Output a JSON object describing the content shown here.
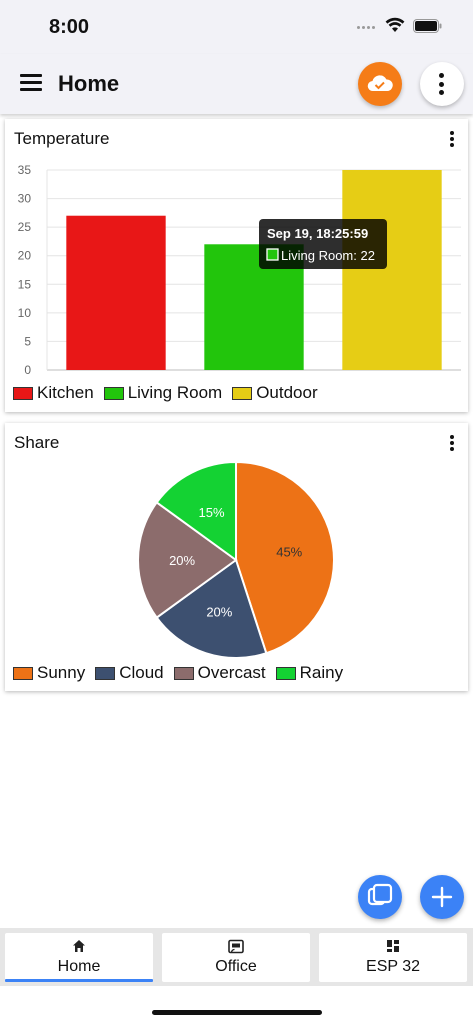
{
  "status": {
    "time": "8:00"
  },
  "app": {
    "title": "Home"
  },
  "temperature_card": {
    "title": "Temperature",
    "tooltip": {
      "time": "Sep 19, 18:25:59",
      "label": "Living Room: 22"
    },
    "legend": [
      {
        "label": "Kitchen",
        "color": "#e81717"
      },
      {
        "label": "Living Room",
        "color": "#22c50c"
      },
      {
        "label": "Outdoor",
        "color": "#e6cd15"
      }
    ]
  },
  "share_card": {
    "title": "Share",
    "legend": [
      {
        "label": "Sunny",
        "color": "#ed7216"
      },
      {
        "label": "Cloud",
        "color": "#3d5070"
      },
      {
        "label": "Overcast",
        "color": "#8c6c6c"
      },
      {
        "label": "Rainy",
        "color": "#14d233"
      }
    ]
  },
  "chart_data": [
    {
      "type": "bar",
      "title": "Temperature",
      "categories": [
        "Kitchen",
        "Living Room",
        "Outdoor"
      ],
      "values": [
        27,
        22,
        35
      ],
      "colors": [
        "#e81717",
        "#22c50c",
        "#e6cd15"
      ],
      "ylim": [
        0,
        35
      ],
      "yticks": [
        0,
        5,
        10,
        15,
        20,
        25,
        30,
        35
      ],
      "grid": true,
      "legend": "bottom"
    },
    {
      "type": "pie",
      "title": "Share",
      "labels": [
        "Sunny",
        "Cloud",
        "Overcast",
        "Rainy"
      ],
      "values": [
        45,
        20,
        20,
        15
      ],
      "data_labels": [
        "45%",
        "20%",
        "20%",
        "15%"
      ],
      "colors": [
        "#ed7216",
        "#3d5070",
        "#8c6c6c",
        "#14d233"
      ],
      "legend": "bottom"
    }
  ],
  "tabs": [
    {
      "label": "Home",
      "icon": "home-icon",
      "active": true
    },
    {
      "label": "Office",
      "icon": "cast-icon",
      "active": false
    },
    {
      "label": "ESP 32",
      "icon": "dashboard-icon",
      "active": false
    }
  ]
}
